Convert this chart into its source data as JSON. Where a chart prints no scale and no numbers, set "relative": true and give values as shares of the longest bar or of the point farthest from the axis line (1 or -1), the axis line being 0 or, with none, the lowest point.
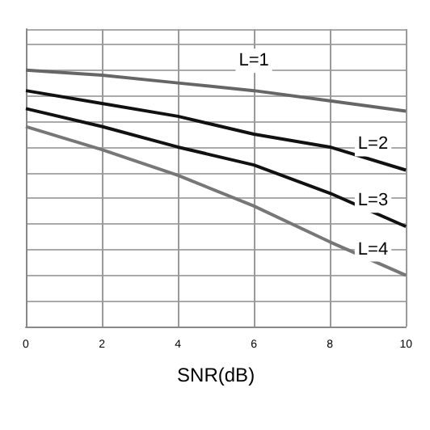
{
  "chart_data": {
    "type": "line",
    "relative": true,
    "xlabel": "SNR(dB)",
    "x": [
      0,
      2,
      4,
      6,
      8,
      10
    ],
    "xlim": [
      0,
      10
    ],
    "xticks": [
      0,
      2,
      4,
      6,
      8,
      10
    ],
    "grid": true,
    "legend": false,
    "marker": "none",
    "line_style": "solid",
    "series": [
      {
        "name": "L=1",
        "color": "#666666",
        "values": [
          1,
          0.98,
          0.95,
          0.92,
          0.88,
          0.84
        ]
      },
      {
        "name": "L=2",
        "color": "#111111",
        "values": [
          0.92,
          0.87,
          0.82,
          0.75,
          0.7,
          0.61
        ]
      },
      {
        "name": "L=3",
        "color": "#111111",
        "values": [
          0.85,
          0.78,
          0.7,
          0.63,
          0.52,
          0.39
        ]
      },
      {
        "name": "L=4",
        "color": "#777777",
        "values": [
          0.78,
          0.69,
          0.59,
          0.47,
          0.33,
          0.2
        ]
      }
    ]
  }
}
